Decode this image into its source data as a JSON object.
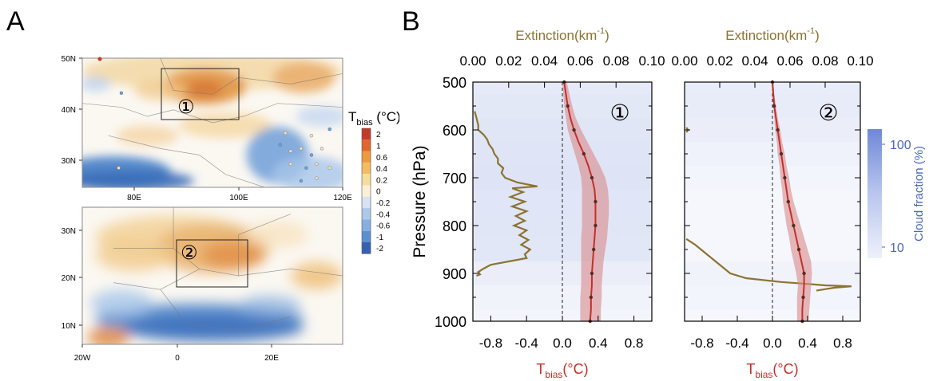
{
  "panel_labels": {
    "a": "A",
    "b": "B"
  },
  "colors": {
    "warm": "#d98a3a",
    "cool": "#3f78c4",
    "extinction": "#8b7330",
    "tbias": "#c42f2a",
    "tbias_band": "#d98a8a",
    "cloud": "#6f88d8"
  },
  "chart_data": [
    {
      "type": "heatmap",
      "panel": "A-top",
      "region_label": "①",
      "xticks": [
        "80E",
        "100E",
        "120E"
      ],
      "yticks": [
        "50N",
        "40N",
        "30N"
      ]
    },
    {
      "type": "heatmap",
      "panel": "A-bottom",
      "region_label": "②",
      "xticks": [
        "20W",
        "0",
        "20E"
      ],
      "yticks": [
        "30N",
        "20N",
        "10N"
      ]
    },
    {
      "type": "colorbar",
      "title": "T",
      "title_sub": "bias",
      "title_unit": " (°C)",
      "levels": [
        "2",
        "1",
        "0.6",
        "0.4",
        "0.2",
        "0",
        "-0.2",
        "-0.4",
        "-0.6",
        "-1",
        "-2"
      ],
      "colors": [
        "#c43a2a",
        "#e0662f",
        "#eb9a3e",
        "#f2bd62",
        "#f7dc9b",
        "#fbf0d5",
        "#d5e3f3",
        "#adc9ea",
        "#86aede",
        "#5d8fcf",
        "#3661b3"
      ]
    },
    {
      "type": "line",
      "panel": "B-1",
      "region_label": "①",
      "ylabel": "Pressure (hPa)",
      "yticks": [
        "500",
        "600",
        "700",
        "800",
        "900",
        "1000"
      ],
      "ylim": [
        500,
        1000
      ],
      "top_axis": {
        "label": "Extinction(km",
        "label_sup": "-1",
        "label_end": ")",
        "ticks": [
          "0.00",
          "0.02",
          "0.04",
          "0.06",
          "0.08",
          "0.10"
        ],
        "lim": [
          0,
          0.1
        ]
      },
      "bottom_axis": {
        "label": "T",
        "label_sub": "bias",
        "label_end": "(°C)",
        "ticks": [
          "-0.8",
          "-0.4",
          "0.0",
          "0.4",
          "0.8"
        ],
        "lim": [
          -1.0,
          1.0
        ]
      },
      "tbias": {
        "p": [
          500,
          525,
          550,
          575,
          600,
          625,
          650,
          675,
          700,
          725,
          750,
          775,
          800,
          825,
          850,
          875,
          900,
          925,
          950,
          975,
          1000
        ],
        "t": [
          0.02,
          0.04,
          0.06,
          0.09,
          0.13,
          0.18,
          0.24,
          0.29,
          0.33,
          0.36,
          0.37,
          0.37,
          0.37,
          0.36,
          0.35,
          0.34,
          0.33,
          0.33,
          0.32,
          0.32,
          0.31
        ],
        "lo": [
          0.0,
          0.01,
          0.02,
          0.04,
          0.06,
          0.1,
          0.14,
          0.18,
          0.21,
          0.22,
          0.22,
          0.22,
          0.22,
          0.21,
          0.21,
          0.21,
          0.21,
          0.21,
          0.2,
          0.2,
          0.2
        ],
        "hi": [
          0.05,
          0.08,
          0.11,
          0.15,
          0.21,
          0.28,
          0.35,
          0.42,
          0.48,
          0.51,
          0.52,
          0.52,
          0.51,
          0.5,
          0.48,
          0.46,
          0.45,
          0.44,
          0.44,
          0.43,
          0.43
        ]
      },
      "extinction": {
        "p": [
          561,
          575,
          590,
          600,
          610,
          620,
          630,
          640,
          650,
          660,
          670,
          680,
          690,
          700,
          710,
          718,
          722,
          730,
          740,
          750,
          760,
          770,
          780,
          790,
          800,
          810,
          820,
          830,
          840,
          850,
          860,
          868,
          875,
          882,
          890,
          897,
          902,
          905
        ],
        "e": [
          0.001,
          0.002,
          0.003,
          0.003,
          0.006,
          0.008,
          0.009,
          0.011,
          0.012,
          0.014,
          0.014,
          0.017,
          0.016,
          0.018,
          0.025,
          0.036,
          0.022,
          0.028,
          0.021,
          0.029,
          0.022,
          0.03,
          0.024,
          0.029,
          0.023,
          0.03,
          0.026,
          0.031,
          0.027,
          0.032,
          0.029,
          0.03,
          0.02,
          0.01,
          0.006,
          0.003,
          0.004,
          0.002
        ]
      },
      "cloud_fraction": {
        "p": [
          500,
          550,
          600,
          650,
          700,
          750,
          800,
          850,
          900,
          950,
          1000
        ],
        "cf": [
          18,
          25,
          30,
          38,
          42,
          35,
          30,
          26,
          10,
          5,
          4
        ]
      }
    },
    {
      "type": "line",
      "panel": "B-2",
      "region_label": "②",
      "yticks": [
        "500",
        "600",
        "700",
        "800",
        "900",
        "1000"
      ],
      "ylim": [
        500,
        1000
      ],
      "top_axis": {
        "label": "Extinction(km",
        "label_sup": "-1",
        "label_end": ")",
        "ticks": [
          "0.00",
          "0.02",
          "0.04",
          "0.06",
          "0.08",
          "0.10"
        ],
        "lim": [
          0,
          0.1
        ]
      },
      "bottom_axis": {
        "label": "T",
        "label_sub": "bias",
        "label_end": "(°C)",
        "ticks": [
          "-0.8",
          "-0.4",
          "0.0",
          "0.4",
          "0.8"
        ],
        "lim": [
          -1.0,
          1.0
        ]
      },
      "tbias": {
        "p": [
          500,
          525,
          550,
          575,
          600,
          625,
          650,
          675,
          700,
          725,
          750,
          775,
          800,
          825,
          850,
          875,
          900,
          925,
          950,
          975,
          1000
        ],
        "t": [
          0.0,
          0.01,
          0.02,
          0.04,
          0.06,
          0.08,
          0.1,
          0.12,
          0.14,
          0.16,
          0.18,
          0.21,
          0.24,
          0.27,
          0.3,
          0.33,
          0.36,
          0.36,
          0.35,
          0.34,
          0.34
        ],
        "lo": [
          -0.01,
          0.0,
          0.01,
          0.02,
          0.03,
          0.05,
          0.06,
          0.08,
          0.09,
          0.11,
          0.12,
          0.14,
          0.16,
          0.19,
          0.21,
          0.24,
          0.27,
          0.29,
          0.28,
          0.28,
          0.28
        ],
        "hi": [
          0.01,
          0.02,
          0.04,
          0.06,
          0.09,
          0.11,
          0.14,
          0.16,
          0.19,
          0.21,
          0.24,
          0.28,
          0.32,
          0.36,
          0.4,
          0.44,
          0.45,
          0.44,
          0.43,
          0.42,
          0.41
        ]
      },
      "extinction": {
        "p": [
          828,
          840,
          855,
          870,
          885,
          900,
          910,
          918,
          922,
          925,
          927,
          930,
          933,
          936
        ],
        "e": [
          0.001,
          0.006,
          0.011,
          0.016,
          0.021,
          0.026,
          0.035,
          0.055,
          0.07,
          0.08,
          0.095,
          0.085,
          0.08,
          0.075
        ]
      },
      "extinction_tick": {
        "p": [
          595,
          600,
          605
        ],
        "e": [
          0.001,
          0.002,
          0.001
        ]
      },
      "cloud_fraction": {
        "p": [
          500,
          550,
          600,
          650,
          700,
          750,
          800,
          850,
          900,
          950,
          1000
        ],
        "cf": [
          12,
          14,
          10,
          6,
          4,
          3,
          3,
          3,
          5,
          4,
          3
        ]
      }
    },
    {
      "type": "colorbar",
      "panel": "B-cloud",
      "label": "Cloud fraction (%)",
      "ticks": [
        "100",
        "10"
      ],
      "scale": "log"
    }
  ]
}
